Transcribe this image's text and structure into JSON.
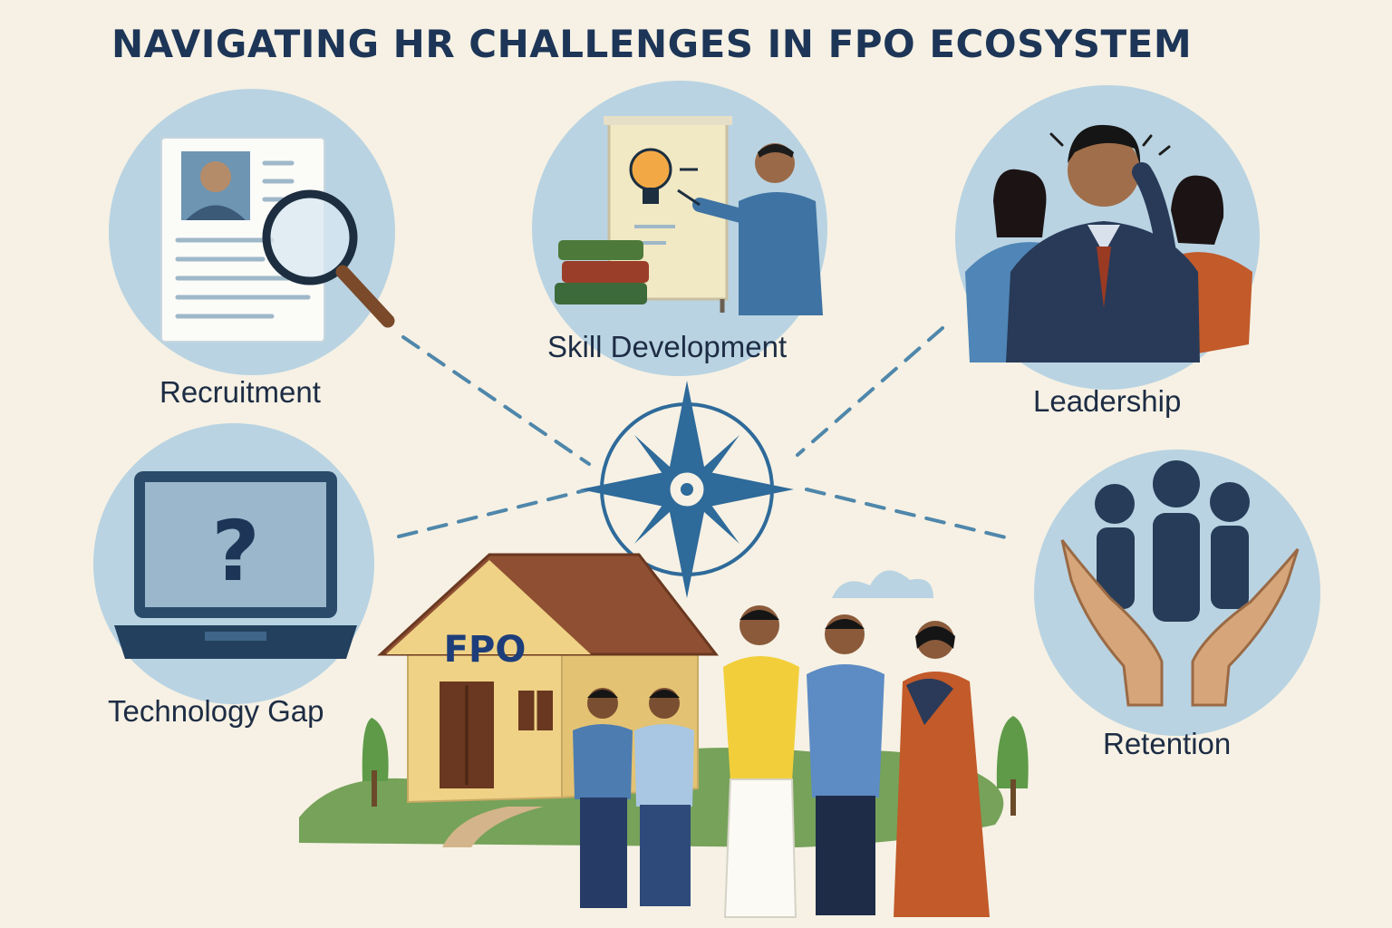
{
  "title": "NAVIGATING HR CHALLENGES IN FPO ECOSYSTEM",
  "nodes": {
    "recruitment": "Recruitment",
    "skill_development": "Skill Development",
    "leadership": "Leadership",
    "technology_gap": "Technology Gap",
    "retention": "Retention"
  },
  "center_icon": "compass-icon",
  "house_sign": "FPO",
  "colors": {
    "background": "#f6f1e4",
    "circle": "#b9d3e2",
    "title": "#1d3557",
    "connector": "#4f87ab",
    "compass": "#2e6a9a"
  }
}
